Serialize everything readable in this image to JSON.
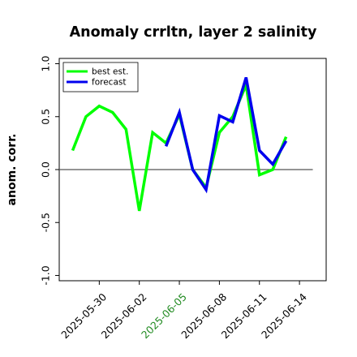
{
  "chart_data": {
    "type": "line",
    "title": "Anomaly crrltn, layer 2 salinity",
    "xlabel": "",
    "ylabel": "anom. corr.",
    "ylim": [
      -1.05,
      1.05
    ],
    "xlim": [
      "2025-05-27",
      "2025-06-16"
    ],
    "yticks": [
      -1.0,
      -0.5,
      0.0,
      0.5,
      1.0
    ],
    "ytick_labels": [
      "-1.0",
      "-0.5",
      "0.0",
      "0.5",
      "1.0"
    ],
    "xticks": [
      "2025-05-30",
      "2025-06-02",
      "2025-06-05",
      "2025-06-08",
      "2025-06-11",
      "2025-06-14"
    ],
    "xtick_colors": [
      "#000000",
      "#000000",
      "#228B22",
      "#000000",
      "#000000",
      "#000000"
    ],
    "reference_line": {
      "y": 0.0,
      "x_start": "2025-05-27",
      "x_end": "2025-06-15",
      "color": "#555555"
    },
    "grid": false,
    "legend_position": "top-left",
    "series": [
      {
        "name": "best est.",
        "color": "#00ff00",
        "points": [
          [
            "2025-05-28",
            0.18
          ],
          [
            "2025-05-29",
            0.5
          ],
          [
            "2025-05-30",
            0.6
          ],
          [
            "2025-05-31",
            0.54
          ],
          [
            "2025-06-01",
            0.38
          ],
          [
            "2025-06-02",
            -0.39
          ],
          [
            "2025-06-03",
            0.35
          ],
          [
            "2025-06-04",
            0.25
          ],
          [
            "2025-06-05",
            0.52
          ],
          [
            "2025-06-06",
            0.0
          ],
          [
            "2025-06-07",
            -0.17
          ],
          [
            "2025-06-08",
            0.35
          ],
          [
            "2025-06-09",
            0.5
          ],
          [
            "2025-06-10",
            0.8
          ],
          [
            "2025-06-11",
            -0.05
          ],
          [
            "2025-06-12",
            0.0
          ],
          [
            "2025-06-13",
            0.31
          ]
        ]
      },
      {
        "name": "forecast",
        "color": "#0000ee",
        "points": [
          [
            "2025-06-04",
            0.22
          ],
          [
            "2025-06-05",
            0.54
          ],
          [
            "2025-06-06",
            0.0
          ],
          [
            "2025-06-07",
            -0.19
          ],
          [
            "2025-06-08",
            0.51
          ],
          [
            "2025-06-09",
            0.45
          ],
          [
            "2025-06-10",
            0.87
          ],
          [
            "2025-06-11",
            0.18
          ],
          [
            "2025-06-12",
            0.05
          ],
          [
            "2025-06-13",
            0.27
          ]
        ]
      }
    ]
  }
}
